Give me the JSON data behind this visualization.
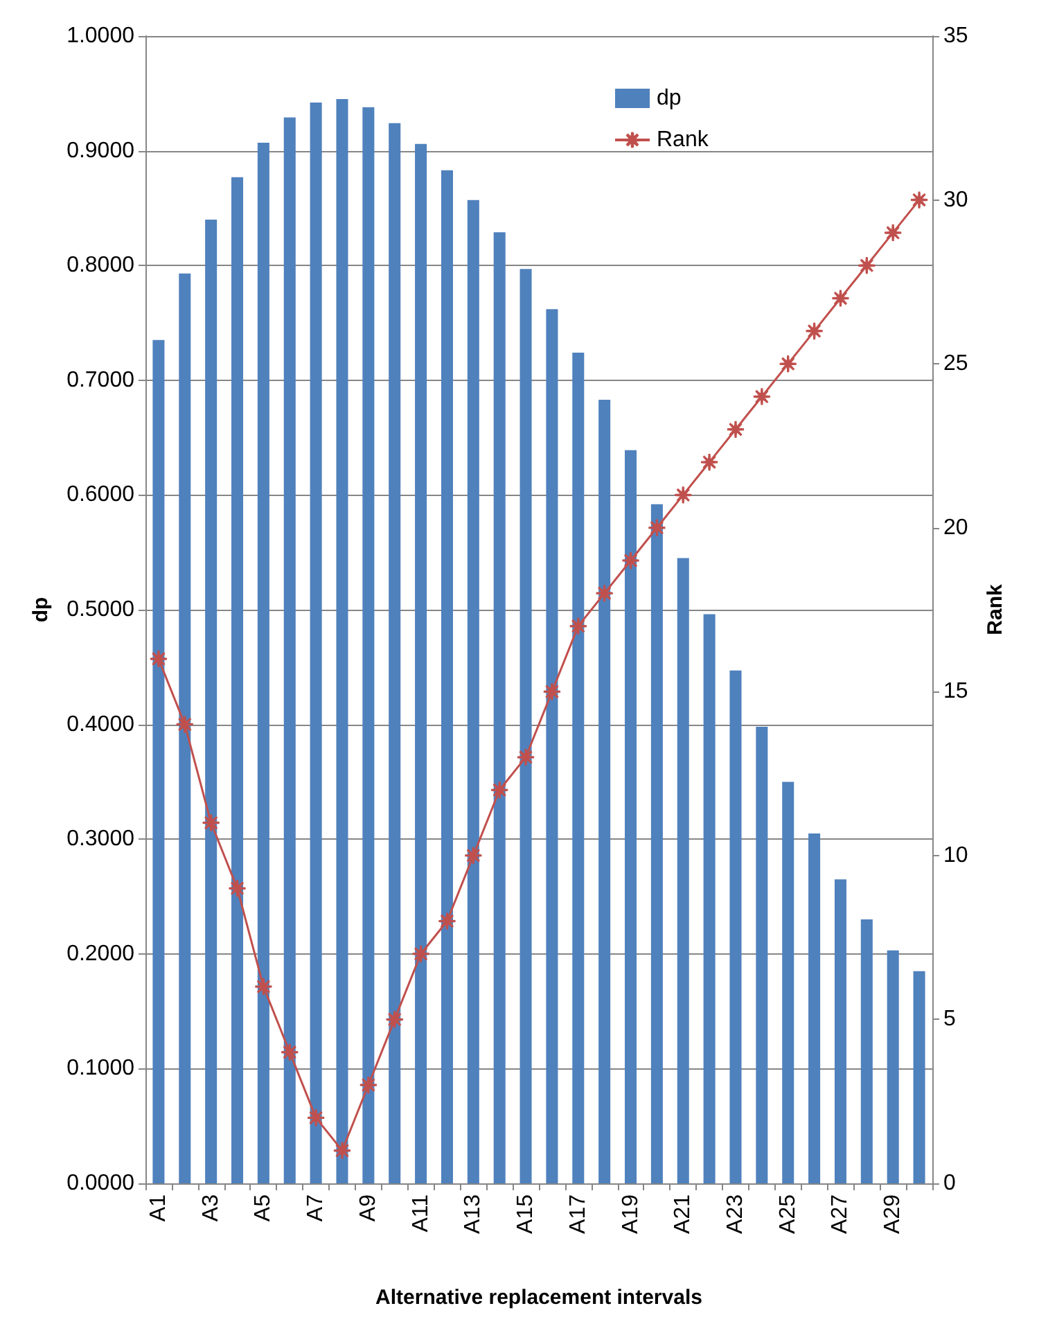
{
  "chart_data": {
    "type": "bar",
    "xlabel": "Alternative replacement intervals",
    "ylabel": "dp",
    "y2label": "Rank",
    "categories": [
      "A1",
      null,
      "A3",
      null,
      "A5",
      null,
      "A7",
      null,
      "A9",
      null,
      "A11",
      null,
      "A13",
      null,
      "A15",
      null,
      "A17",
      null,
      "A19",
      null,
      "A21",
      null,
      "A23",
      null,
      "A25",
      null,
      "A27",
      null,
      "A29",
      null
    ],
    "series": [
      {
        "name": "dp",
        "color": "#4f81bd",
        "values": [
          0.735,
          0.793,
          0.84,
          0.877,
          0.907,
          0.929,
          0.942,
          0.945,
          0.938,
          0.924,
          0.906,
          0.883,
          0.857,
          0.829,
          0.797,
          0.762,
          0.724,
          0.683,
          0.639,
          0.592,
          0.545,
          0.496,
          0.447,
          0.398,
          0.35,
          0.305,
          0.265,
          0.23,
          0.203,
          0.185
        ]
      },
      {
        "name": "Rank",
        "type": "line",
        "axis": "y2",
        "color": "#c0504d",
        "marker": "star",
        "values": [
          16,
          14,
          11,
          9,
          6,
          4,
          2,
          1,
          3,
          5,
          7,
          8,
          10,
          12,
          13,
          15,
          17,
          18,
          19,
          20,
          21,
          22,
          23,
          24,
          25,
          26,
          27,
          28,
          29,
          30
        ]
      }
    ],
    "ylim": [
      0,
      1
    ],
    "yticks": [
      {
        "value": 0,
        "label": "0.0000"
      },
      {
        "value": 0.1,
        "label": "0.1000"
      },
      {
        "value": 0.2,
        "label": "0.2000"
      },
      {
        "value": 0.3,
        "label": "0.3000"
      },
      {
        "value": 0.4,
        "label": "0.4000"
      },
      {
        "value": 0.5,
        "label": "0.5000"
      },
      {
        "value": 0.6,
        "label": "0.6000"
      },
      {
        "value": 0.7,
        "label": "0.7000"
      },
      {
        "value": 0.8,
        "label": "0.8000"
      },
      {
        "value": 0.9,
        "label": "0.9000"
      },
      {
        "value": 1,
        "label": "1.0000"
      }
    ],
    "y2lim": [
      0,
      35
    ],
    "y2ticks": [
      0,
      5,
      10,
      15,
      20,
      25,
      30,
      35
    ],
    "grid": "y",
    "legend": "top right"
  }
}
